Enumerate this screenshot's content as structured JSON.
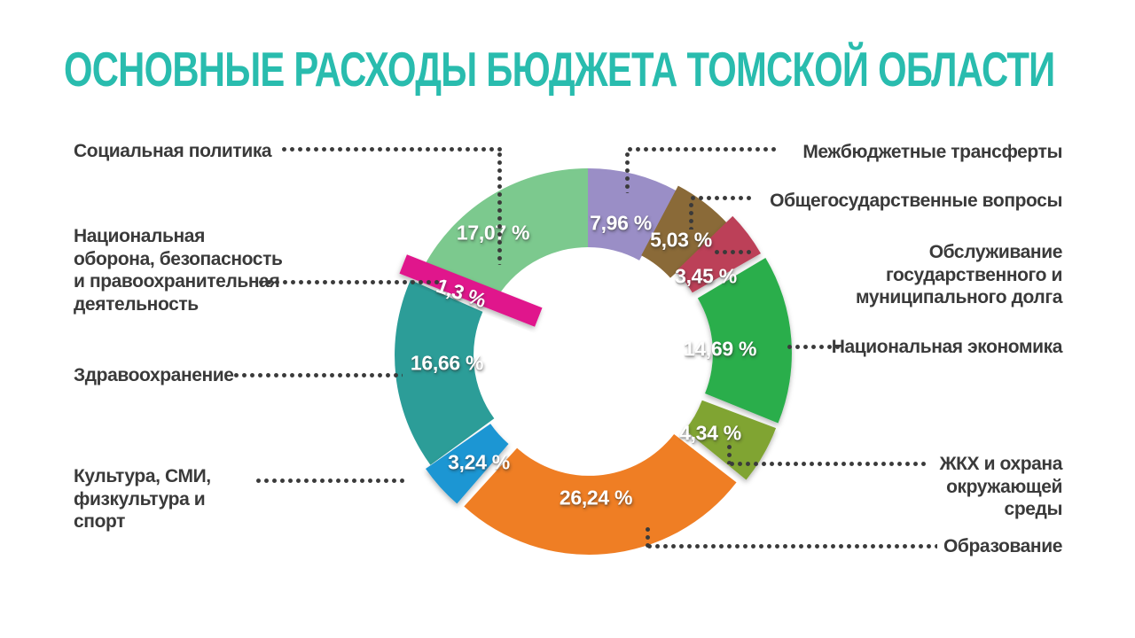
{
  "title": "ОСНОВНЫЕ РАСХОДЫ БЮДЖЕТА ТОМСКОЙ ОБЛАСТИ",
  "colors": {
    "title": "#29BCAE",
    "label": "#3A3A3A",
    "dots": "#3A3A3A",
    "percent_text": "#FFFFFF",
    "background": "#FFFFFF"
  },
  "chart_data": {
    "type": "pie",
    "subtype": "donut",
    "title": "ОСНОВНЫЕ РАСХОДЫ БЮДЖЕТА ТОМСКОЙ ОБЛАСТИ",
    "unit": "%",
    "start_angle": "12 o'clock, clockwise",
    "legend_position": "around",
    "slices": [
      {
        "label": "Межбюджетные трансферты",
        "value": 7.96,
        "value_label": "7,96 %",
        "color": "#9A8EC6",
        "label_side": "right"
      },
      {
        "label": "Общегосударственные вопросы",
        "value": 5.03,
        "value_label": "5,03 %",
        "color": "#8A6A38",
        "label_side": "right"
      },
      {
        "label": "Обслуживание государственного и муниципального долга",
        "value": 3.45,
        "value_label": "3,45 %",
        "color": "#BC4159",
        "label_side": "right"
      },
      {
        "label": "Национальная экономика",
        "value": 14.69,
        "value_label": "14,69 %",
        "color": "#2BAE4C",
        "label_side": "right"
      },
      {
        "label": "ЖКХ и охрана окружающей среды",
        "value": 4.34,
        "value_label": "4,34 %",
        "color": "#80A433",
        "label_side": "right"
      },
      {
        "label": "Образование",
        "value": 26.24,
        "value_label": "26,24 %",
        "color": "#EF7E24",
        "label_side": "right"
      },
      {
        "label": "Культура, СМИ, физкультура и спорт",
        "value": 3.24,
        "value_label": "3,24 %",
        "color": "#1E96D3",
        "label_side": "left"
      },
      {
        "label": "Здравоохранение",
        "value": 16.66,
        "value_label": "16,66 %",
        "color": "#2C9D98",
        "label_side": "left"
      },
      {
        "label": "Национальная оборона, безопасность и правоохранительная деятельность",
        "value": 1.3,
        "value_label": "1,3 %",
        "color": "#E0148C",
        "label_side": "left"
      },
      {
        "label": "Социальная политика",
        "value": 17.07,
        "value_label": "17,07 %",
        "color": "#7CC98E",
        "label_side": "left"
      }
    ]
  }
}
